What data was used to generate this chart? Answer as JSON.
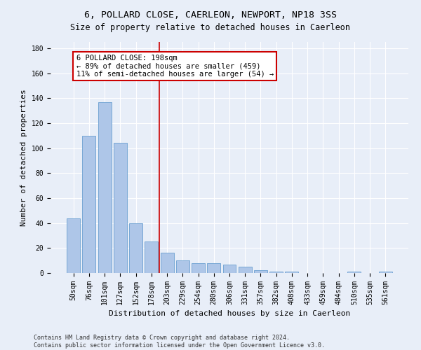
{
  "title": "6, POLLARD CLOSE, CAERLEON, NEWPORT, NP18 3SS",
  "subtitle": "Size of property relative to detached houses in Caerleon",
  "xlabel": "Distribution of detached houses by size in Caerleon",
  "ylabel": "Number of detached properties",
  "categories": [
    "50sqm",
    "76sqm",
    "101sqm",
    "127sqm",
    "152sqm",
    "178sqm",
    "203sqm",
    "229sqm",
    "254sqm",
    "280sqm",
    "306sqm",
    "331sqm",
    "357sqm",
    "382sqm",
    "408sqm",
    "433sqm",
    "459sqm",
    "484sqm",
    "510sqm",
    "535sqm",
    "561sqm"
  ],
  "values": [
    44,
    110,
    137,
    104,
    40,
    25,
    16,
    10,
    8,
    8,
    7,
    5,
    2,
    1,
    1,
    0,
    0,
    0,
    1,
    0,
    1
  ],
  "bar_color": "#aec6e8",
  "bar_edge_color": "#6a9fd0",
  "vline_x": 5.5,
  "vline_color": "#cc0000",
  "annotation_line1": "6 POLLARD CLOSE: 198sqm",
  "annotation_line2": "← 89% of detached houses are smaller (459)",
  "annotation_line3": "11% of semi-detached houses are larger (54) →",
  "annotation_box_color": "#cc0000",
  "ylim": [
    0,
    185
  ],
  "yticks": [
    0,
    20,
    40,
    60,
    80,
    100,
    120,
    140,
    160,
    180
  ],
  "footer_line1": "Contains HM Land Registry data © Crown copyright and database right 2024.",
  "footer_line2": "Contains public sector information licensed under the Open Government Licence v3.0.",
  "bg_color": "#e8eef8",
  "plot_bg_color": "#e8eef8",
  "grid_color": "#ffffff",
  "title_fontsize": 9.5,
  "subtitle_fontsize": 8.5,
  "axis_label_fontsize": 8,
  "tick_fontsize": 7,
  "annotation_fontsize": 7.5,
  "footer_fontsize": 6
}
